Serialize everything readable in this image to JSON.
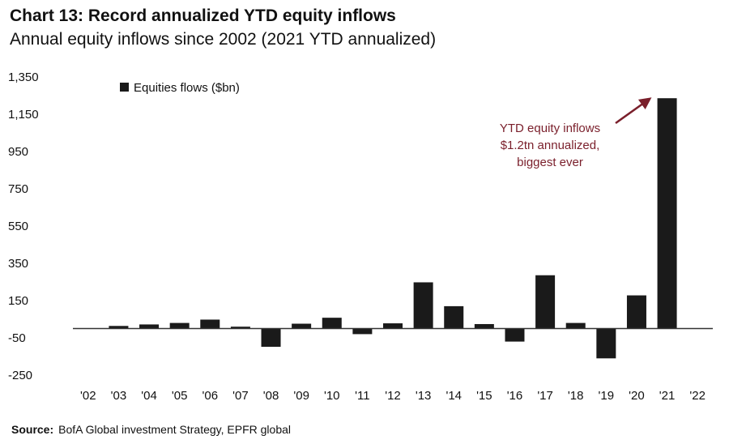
{
  "header": {
    "title": "Chart 13: Record annualized YTD equity inflows",
    "subtitle": "Annual equity inflows since 2002 (2021 YTD annualized)"
  },
  "footer": {
    "source_label": "Source:",
    "source_text": "BofA Global investment Strategy, EPFR global"
  },
  "chart_data": {
    "type": "bar",
    "title": "Chart 13: Record annualized YTD equity inflows",
    "subtitle": "Annual equity inflows since 2002 (2021 YTD annualized)",
    "xlabel": "",
    "ylabel": "",
    "categories": [
      "'02",
      "'03",
      "'04",
      "'05",
      "'06",
      "'07",
      "'08",
      "'09",
      "'10",
      "'11",
      "'12",
      "'13",
      "'14",
      "'15",
      "'16",
      "'17",
      "'18",
      "'19",
      "'20",
      "'21",
      "'22"
    ],
    "series": [
      {
        "name": "Equities flows ($bn)",
        "color": "#1a1a1a",
        "values": [
          -2,
          14,
          22,
          30,
          48,
          10,
          -98,
          26,
          58,
          -30,
          28,
          248,
          120,
          24,
          -70,
          286,
          30,
          -160,
          178,
          1236,
          null
        ]
      }
    ],
    "yticks": [
      1350,
      1150,
      950,
      750,
      550,
      350,
      150,
      -50,
      -250
    ],
    "ytick_labels": [
      "1,350",
      "1,150",
      "950",
      "750",
      "550",
      "350",
      "150",
      "-50",
      "-250"
    ],
    "ylim": [
      -250,
      1350
    ],
    "grid": false,
    "legend": {
      "position": "top-left",
      "label": "Equities flows ($bn)"
    },
    "annotation": {
      "lines": [
        "YTD equity inflows",
        "$1.2tn annualized,",
        "biggest ever"
      ],
      "color": "#7a1f2b",
      "points_to": "'21"
    }
  }
}
